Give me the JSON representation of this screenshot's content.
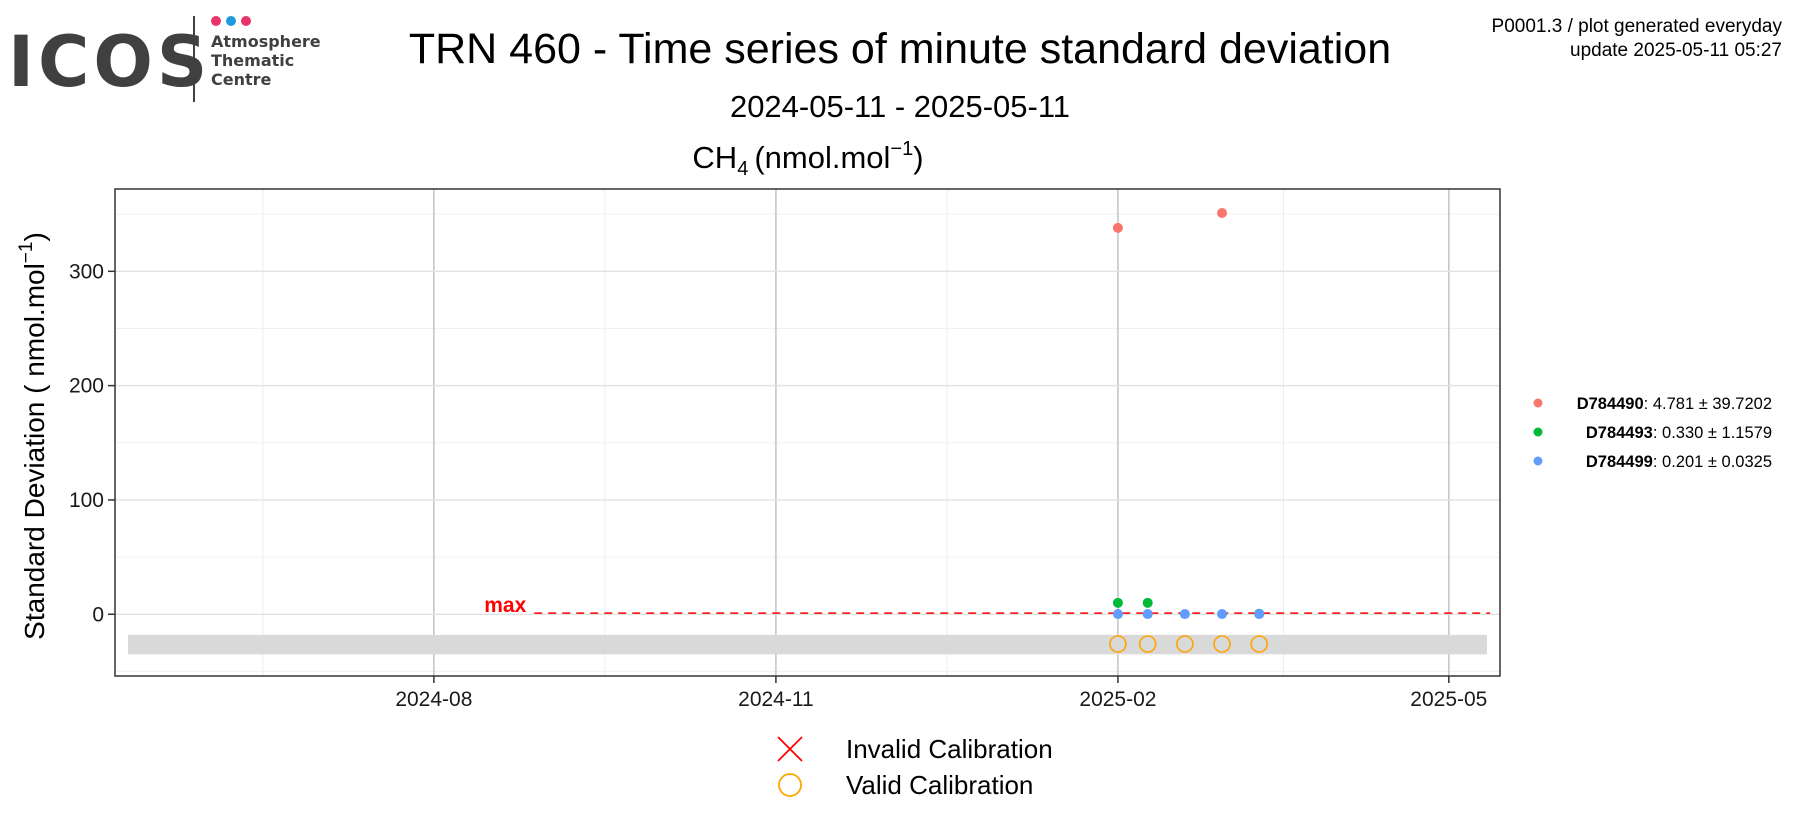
{
  "header": {
    "logo": {
      "wordmark": "ICOS",
      "line1": "Atmosphere",
      "line2": "Thematic",
      "line3": "Centre",
      "dot_colors": [
        "#e8336d",
        "#1e9be0",
        "#e8336d"
      ]
    },
    "title": "TRN 460 - Time series of minute standard deviation",
    "date_range": "2024-05-11 - 2025-05-11",
    "meta_line1": "P0001.3 / plot generated everyday",
    "meta_line2": "update  2025-05-11 05:27"
  },
  "chart_data": {
    "type": "scatter",
    "panel_title": {
      "species": "CH",
      "subscript": "4",
      "unit_prefix": "(nmol.mol",
      "superscript": "−1",
      "unit_suffix": ")"
    },
    "ylabel": {
      "prefix": "Standard Deviation ( nmol.mol",
      "superscript": "−1",
      "suffix": ")"
    },
    "xlim": [
      "2024-05-11",
      "2025-05-11"
    ],
    "ylim": [
      -54,
      372
    ],
    "x_ticks": [
      {
        "date": "2024-08-01",
        "label": "2024-08"
      },
      {
        "date": "2024-11-01",
        "label": "2024-11"
      },
      {
        "date": "2025-02-01",
        "label": "2025-02"
      },
      {
        "date": "2025-05-01",
        "label": "2025-05"
      }
    ],
    "y_ticks": [
      {
        "value": 0,
        "label": "0"
      },
      {
        "value": 100,
        "label": "100"
      },
      {
        "value": 200,
        "label": "200"
      },
      {
        "value": 300,
        "label": "300"
      }
    ],
    "grid": true,
    "max_threshold": {
      "label": "max",
      "value": 1,
      "start_date": "2024-08-28",
      "color": "#ff0000"
    },
    "calibration_band": {
      "y_range": [
        -35,
        -18
      ],
      "color": "#d9d9d9"
    },
    "series": [
      {
        "name": "D784490",
        "stats": ": 4.781 ± 39.7202",
        "color": "#f8766d",
        "points": [
          {
            "x": "2025-02-01",
            "y": 338
          },
          {
            "x": "2025-03-01",
            "y": 351
          }
        ]
      },
      {
        "name": "D784493",
        "stats": ": 0.330 ± 1.1579",
        "color": "#00ba38",
        "points": [
          {
            "x": "2025-02-01",
            "y": 10
          },
          {
            "x": "2025-02-09",
            "y": 10
          },
          {
            "x": "2025-03-11",
            "y": 0.5
          }
        ]
      },
      {
        "name": "D784499",
        "stats": ": 0.201 ± 0.0325",
        "color": "#619cff",
        "points": [
          {
            "x": "2025-02-01",
            "y": 0.2
          },
          {
            "x": "2025-02-09",
            "y": 0.2
          },
          {
            "x": "2025-02-19",
            "y": 0.2
          },
          {
            "x": "2025-03-01",
            "y": 0.2
          },
          {
            "x": "2025-03-11",
            "y": 0.2
          }
        ]
      }
    ],
    "valid_calibrations": {
      "y": -26,
      "color": "#ffa500",
      "dates": [
        "2025-02-01",
        "2025-02-09",
        "2025-02-19",
        "2025-03-01",
        "2025-03-11"
      ]
    },
    "bottom_legend": [
      {
        "symbol": "cross",
        "color": "#ff0000",
        "label": "Invalid Calibration"
      },
      {
        "symbol": "circle",
        "color": "#ffa500",
        "label": "Valid Calibration"
      }
    ]
  }
}
